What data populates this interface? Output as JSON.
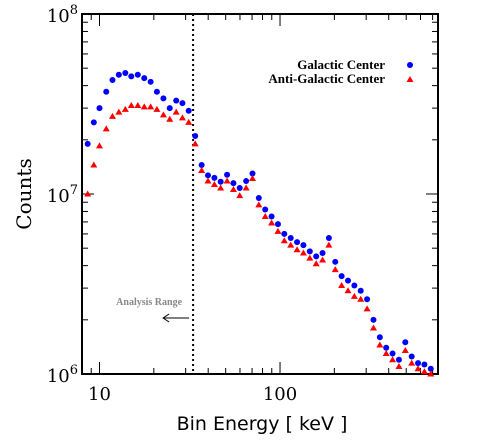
{
  "chart_data": {
    "type": "scatter",
    "xscale": "log",
    "yscale": "log",
    "xlim": [
      8,
      750
    ],
    "ylim": [
      1000000,
      100000000
    ],
    "xlabel": "Bin Energy [ keV ]",
    "ylabel": "Counts",
    "x_tick_labels": [
      "10",
      "100"
    ],
    "y_tick_labels": [
      {
        "base": "10",
        "exp": "6"
      },
      {
        "base": "10",
        "exp": "7"
      },
      {
        "base": "10",
        "exp": "8"
      }
    ],
    "legend_position": "top-right",
    "annotation": {
      "text": "Analysis Range",
      "vline_x": 33,
      "arrow_direction": "left"
    },
    "series": [
      {
        "name": "Galactic Center",
        "marker": "circle",
        "color": "#0000ff",
        "x": [
          8.6,
          9.3,
          10.0,
          10.9,
          11.8,
          12.8,
          13.9,
          15.0,
          16.3,
          17.7,
          19.2,
          20.8,
          22.6,
          24.5,
          26.6,
          28.8,
          31.2,
          33.9,
          36.8,
          39.9,
          43.3,
          46.9,
          50.9,
          55.2,
          59.8,
          64.9,
          70.4,
          76.3,
          82.8,
          89.8,
          97.4,
          105.6,
          114.6,
          124.3,
          134.8,
          146.2,
          158.6,
          172.0,
          186.5,
          202.3,
          219.4,
          238.0,
          258.1,
          279.9,
          303.6,
          329.3,
          357.2,
          387.4,
          420.2,
          455.7,
          494.3,
          536.1,
          581.5,
          630.7,
          684.0
        ],
        "y": [
          19000000,
          25000000,
          30000000,
          37000000,
          43000000,
          46000000,
          47000000,
          45000000,
          46000000,
          44000000,
          42000000,
          37000000,
          34000000,
          30000000,
          33000000,
          32000000,
          29000000,
          21000000,
          14500000,
          12700000,
          12300000,
          11700000,
          12800000,
          11500000,
          10800000,
          11800000,
          13000000,
          9500000,
          8200000,
          7500000,
          6800000,
          6000000,
          5700000,
          5400000,
          5200000,
          4800000,
          4500000,
          4700000,
          5700000,
          4200000,
          3500000,
          3300000,
          3100000,
          2900000,
          2600000,
          2000000,
          1600000,
          1400000,
          1300000,
          1200000,
          1500000,
          1250000,
          1150000,
          1130000,
          1070000
        ]
      },
      {
        "name": "Anti-Galactic Center",
        "marker": "triangle",
        "color": "#ff0000",
        "x": [
          8.6,
          9.3,
          10.0,
          10.9,
          11.8,
          12.8,
          13.9,
          15.0,
          16.3,
          17.7,
          19.2,
          20.8,
          22.6,
          24.5,
          26.6,
          28.8,
          31.2,
          33.9,
          36.8,
          39.9,
          43.3,
          46.9,
          50.9,
          55.2,
          59.8,
          64.9,
          70.4,
          76.3,
          82.8,
          89.8,
          97.4,
          105.6,
          114.6,
          124.3,
          134.8,
          146.2,
          158.6,
          172.0,
          186.5,
          202.3,
          219.4,
          238.0,
          258.1,
          279.9,
          303.6,
          329.3,
          357.2,
          387.4,
          420.2,
          455.7,
          494.3,
          536.1,
          581.5,
          630.7,
          684.0
        ],
        "y": [
          10000000,
          14500000,
          18500000,
          23000000,
          27000000,
          28500000,
          29500000,
          31000000,
          31000000,
          30500000,
          30500000,
          29500000,
          27500000,
          26000000,
          28500000,
          26500000,
          25000000,
          19000000,
          13500000,
          11800000,
          11300000,
          10800000,
          11800000,
          10600000,
          9800000,
          10800000,
          12200000,
          8700000,
          7500000,
          6900000,
          6200000,
          5500000,
          5200000,
          4900000,
          4700000,
          4400000,
          4100000,
          4300000,
          5200000,
          3800000,
          3100000,
          2900000,
          2700000,
          2600000,
          2300000,
          1800000,
          1450000,
          1300000,
          1200000,
          1100000,
          1350000,
          1150000,
          1070000,
          1030000,
          1000000
        ]
      }
    ]
  }
}
